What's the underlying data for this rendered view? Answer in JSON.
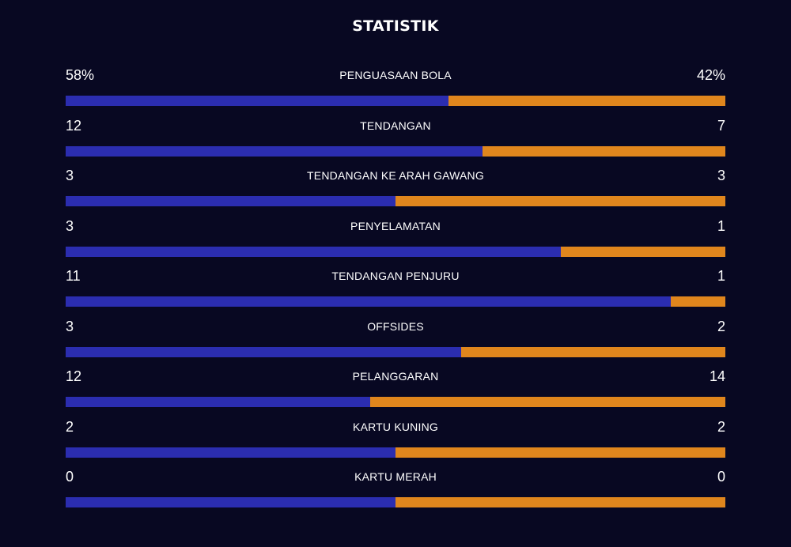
{
  "title": "STATISTIK",
  "colors": {
    "background": "#080822",
    "home": "#2b2db0",
    "away": "#e0861d",
    "text": "#ffffff"
  },
  "stats": [
    {
      "label": "PENGUASAAN BOLA",
      "home": "58%",
      "away": "42%",
      "home_share": 0.58
    },
    {
      "label": "TENDANGAN",
      "home": "12",
      "away": "7",
      "home_share": 0.632
    },
    {
      "label": "TENDANGAN KE ARAH GAWANG",
      "home": "3",
      "away": "3",
      "home_share": 0.5
    },
    {
      "label": "PENYELAMATAN",
      "home": "3",
      "away": "1",
      "home_share": 0.75
    },
    {
      "label": "TENDANGAN PENJURU",
      "home": "11",
      "away": "1",
      "home_share": 0.917
    },
    {
      "label": "OFFSIDES",
      "home": "3",
      "away": "2",
      "home_share": 0.6
    },
    {
      "label": "PELANGGARAN",
      "home": "12",
      "away": "14",
      "home_share": 0.462
    },
    {
      "label": "KARTU KUNING",
      "home": "2",
      "away": "2",
      "home_share": 0.5
    },
    {
      "label": "KARTU MERAH",
      "home": "0",
      "away": "0",
      "home_share": 0.5
    }
  ]
}
